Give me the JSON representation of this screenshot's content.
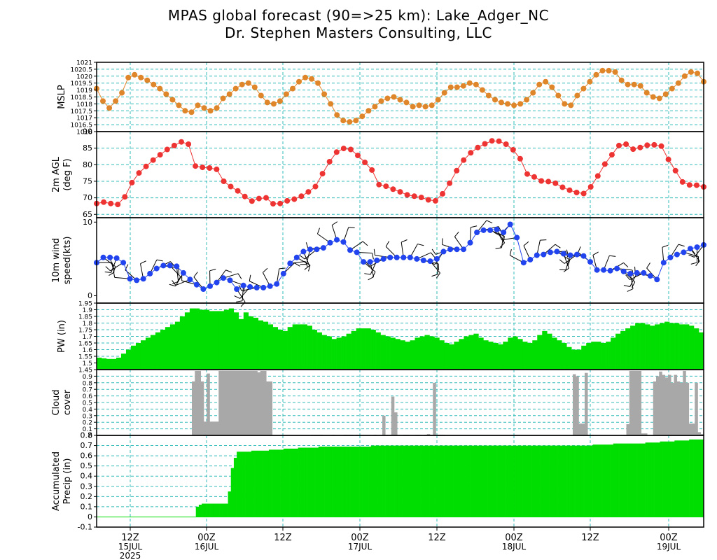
{
  "title": "MPAS global forecast (90=>25 km): Lake_Adger_NC",
  "subtitle": "Dr. Stephen Masters Consulting, LLC",
  "colors": {
    "mslp": "#e0862a",
    "t2m": "#ee3333",
    "wind": "#2244ee",
    "pw_fill": "#00dd00",
    "cloud_fill": "#a8a8a8",
    "precip_fill": "#00dd00",
    "grid": "#33bbbb"
  },
  "chart_data": [
    {
      "id": "mslp",
      "type": "line",
      "ylabel": [
        "MSLP"
      ],
      "ylim": [
        1016,
        1021
      ],
      "yticks": [
        "1016",
        "1016.5",
        "1017",
        "1017.5",
        "1018",
        "1018.5",
        "1019",
        "1019.5",
        "1020",
        "1020.5",
        "1021"
      ],
      "grid": true,
      "values": [
        1019.1,
        1018.2,
        1017.7,
        1018.2,
        1018.8,
        1019.9,
        1020.1,
        1019.9,
        1019.7,
        1019.4,
        1019.1,
        1018.7,
        1018.3,
        1017.9,
        1017.5,
        1017.4,
        1017.9,
        1017.7,
        1017.5,
        1017.7,
        1018.4,
        1018.7,
        1019.1,
        1019.4,
        1019.5,
        1019.2,
        1018.6,
        1018.1,
        1018.0,
        1018.2,
        1018.7,
        1019.1,
        1019.6,
        1019.9,
        1019.8,
        1019.5,
        1018.7,
        1018.0,
        1017.2,
        1016.8,
        1016.7,
        1016.8,
        1017.1,
        1017.5,
        1017.8,
        1018.2,
        1018.4,
        1018.5,
        1018.3,
        1018.1,
        1017.8,
        1017.9,
        1017.8,
        1017.9,
        1018.3,
        1018.8,
        1019.2,
        1019.2,
        1019.3,
        1019.5,
        1019.4,
        1019.0,
        1018.6,
        1018.3,
        1018.1,
        1018.0,
        1017.9,
        1018.0,
        1018.3,
        1018.8,
        1019.4,
        1019.6,
        1019.2,
        1018.6,
        1018.0,
        1017.9,
        1018.6,
        1019.1,
        1019.6,
        1020.1,
        1020.4,
        1020.4,
        1020.3,
        1019.7,
        1019.4,
        1019.4,
        1019.3,
        1018.8,
        1018.5,
        1018.4,
        1018.7,
        1019.1,
        1019.5,
        1020.0,
        1020.3,
        1020.2,
        1019.6
      ]
    },
    {
      "id": "t2m",
      "type": "line",
      "ylabel": [
        "2m AGL",
        "(deg F)"
      ],
      "ylim": [
        64,
        90
      ],
      "yticks": [
        "65",
        "70",
        "75",
        "80",
        "85",
        "90"
      ],
      "grid": true,
      "values": [
        68.3,
        68.7,
        68.3,
        68.0,
        70.3,
        74.6,
        77.5,
        79.5,
        81.4,
        83.0,
        84.6,
        85.8,
        86.9,
        86.2,
        79.6,
        79.2,
        79.0,
        78.6,
        75.0,
        73.4,
        72.1,
        70.4,
        69.0,
        69.8,
        70.0,
        68.2,
        68.3,
        69.1,
        69.6,
        70.5,
        71.8,
        73.4,
        77.3,
        80.9,
        83.8,
        84.9,
        84.6,
        82.8,
        80.7,
        78.4,
        74.0,
        73.5,
        72.6,
        71.8,
        70.9,
        70.5,
        70.1,
        69.4,
        69.1,
        71.2,
        74.4,
        78.2,
        81.4,
        83.6,
        85.2,
        86.3,
        87.2,
        87.1,
        86.2,
        84.5,
        81.8,
        77.2,
        76.3,
        75.1,
        74.9,
        74.4,
        73.2,
        72.3,
        71.6,
        71.3,
        73.3,
        76.6,
        80.2,
        83.0,
        85.8,
        86.2,
        84.7,
        85.2,
        85.9,
        86.0,
        85.6,
        81.6,
        78.2,
        74.8,
        73.9,
        73.8,
        73.3
      ]
    },
    {
      "id": "wind",
      "type": "line",
      "ylabel": [
        "10m wind",
        "speed(kts)"
      ],
      "ylim": [
        -1,
        10.6
      ],
      "yticks": [
        "0",
        "10"
      ],
      "grid": false,
      "barbs": "wind barbs drawn along the speed curve",
      "values": [
        4.5,
        5.2,
        5.2,
        5.1,
        4.5,
        2.3,
        2.1,
        2.3,
        3.0,
        3.7,
        4.1,
        4.1,
        4.0,
        3.1,
        2.2,
        1.5,
        0.9,
        1.3,
        1.8,
        2.4,
        2.1,
        0.9,
        1.4,
        1.2,
        1.1,
        1.1,
        1.3,
        1.6,
        3.0,
        4.4,
        5.2,
        6.0,
        6.3,
        6.3,
        6.5,
        7.2,
        7.6,
        7.3,
        6.2,
        5.9,
        4.6,
        4.6,
        4.8,
        5.0,
        5.2,
        5.2,
        5.2,
        5.2,
        5.0,
        4.8,
        4.7,
        5.0,
        6.0,
        6.3,
        6.3,
        6.3,
        7.2,
        8.6,
        8.9,
        8.9,
        9.0,
        8.6,
        9.7,
        7.9,
        4.5,
        4.9,
        5.5,
        5.6,
        5.9,
        6.0,
        5.7,
        5.5,
        5.6,
        5.4,
        4.6,
        3.5,
        3.5,
        3.4,
        3.7,
        3.3,
        3.0,
        3.1,
        3.1,
        2.7,
        2.2,
        4.5,
        5.2,
        5.6,
        5.9,
        6.4,
        6.6,
        6.9
      ]
    },
    {
      "id": "pw",
      "type": "area",
      "ylabel": [
        "PW (in)"
      ],
      "ylim": [
        1.45,
        1.95
      ],
      "yticks": [
        "1.45",
        "1.5",
        "1.55",
        "1.6",
        "1.65",
        "1.7",
        "1.75",
        "1.8",
        "1.85",
        "1.9",
        "1.95"
      ],
      "grid": true,
      "values": [
        1.54,
        1.535,
        1.53,
        1.53,
        1.54,
        1.57,
        1.6,
        1.63,
        1.65,
        1.67,
        1.69,
        1.71,
        1.73,
        1.75,
        1.77,
        1.79,
        1.81,
        1.85,
        1.88,
        1.91,
        1.91,
        1.9,
        1.9,
        1.89,
        1.89,
        1.89,
        1.9,
        1.91,
        1.88,
        1.83,
        1.88,
        1.85,
        1.84,
        1.82,
        1.81,
        1.79,
        1.77,
        1.75,
        1.74,
        1.77,
        1.79,
        1.79,
        1.79,
        1.78,
        1.75,
        1.73,
        1.71,
        1.7,
        1.68,
        1.69,
        1.7,
        1.72,
        1.74,
        1.76,
        1.76,
        1.76,
        1.75,
        1.73,
        1.71,
        1.7,
        1.69,
        1.68,
        1.67,
        1.66,
        1.67,
        1.69,
        1.7,
        1.71,
        1.7,
        1.69,
        1.67,
        1.65,
        1.64,
        1.66,
        1.68,
        1.7,
        1.71,
        1.72,
        1.69,
        1.67,
        1.66,
        1.65,
        1.64,
        1.66,
        1.69,
        1.7,
        1.68,
        1.66,
        1.65,
        1.67,
        1.71,
        1.74,
        1.72,
        1.69,
        1.67,
        1.65,
        1.62,
        1.6,
        1.6,
        1.63,
        1.65,
        1.66,
        1.66,
        1.65,
        1.66,
        1.69,
        1.72,
        1.74,
        1.76,
        1.78,
        1.8,
        1.8,
        1.79,
        1.78,
        1.79,
        1.8,
        1.81,
        1.8,
        1.8,
        1.79,
        1.79,
        1.78,
        1.76,
        1.73
      ]
    },
    {
      "id": "cloud",
      "type": "bar",
      "ylabel": [
        "Cloud",
        "cover"
      ],
      "ylim": [
        0,
        1
      ],
      "yticks": [
        "0",
        "0.1",
        "0.2",
        "0.3",
        "0.4",
        "0.5",
        "0.6",
        "0.7",
        "0.8",
        "0.9"
      ],
      "grid": true,
      "values": [
        0,
        0,
        0,
        0,
        0,
        0,
        0,
        0,
        0,
        0,
        0,
        0,
        0,
        0,
        0,
        0,
        0,
        0,
        0,
        0,
        0,
        0,
        0,
        0,
        0,
        0,
        0,
        0,
        0,
        0,
        0,
        0,
        0.82,
        0.98,
        0.98,
        0.82,
        0.21,
        0.94,
        0.21,
        0.21,
        0.21,
        0.98,
        0.98,
        0.98,
        0.98,
        0.98,
        0.98,
        0.98,
        0.98,
        0.98,
        0.98,
        0.98,
        0.98,
        0.98,
        0.96,
        0.98,
        0.98,
        0.82,
        0.82,
        0,
        0,
        0,
        0,
        0,
        0,
        0,
        0,
        0,
        0,
        0,
        0,
        0,
        0.01,
        0.01,
        0.01,
        0.01,
        0,
        0,
        0,
        0.01,
        0,
        0,
        0,
        0.01,
        0.01,
        0.01,
        0,
        0.01,
        0,
        0,
        0,
        0,
        0,
        0.01,
        0,
        0,
        0.3,
        0.01,
        0.01,
        0.59,
        0.35,
        0,
        0,
        0.01,
        0.01,
        0,
        0,
        0.01,
        0.01,
        0,
        0.01,
        0.02,
        0.01,
        0.8,
        0.01,
        0.01,
        0.01,
        0,
        0,
        0,
        0,
        0,
        0,
        0,
        0,
        0,
        0,
        0,
        0,
        0,
        0,
        0,
        0,
        0,
        0,
        0,
        0,
        0,
        0,
        0,
        0,
        0,
        0,
        0,
        0,
        0,
        0,
        0,
        0,
        0,
        0,
        0,
        0,
        0,
        0,
        0,
        0,
        0,
        0,
        0,
        0.93,
        0.9,
        0.18,
        0.18,
        0.95,
        0.01,
        0.01,
        0,
        0,
        0,
        0,
        0,
        0,
        0,
        0,
        0,
        0.01,
        0.01,
        0.17,
        0.98,
        0.98,
        0.98,
        0.98,
        0.03,
        0.03,
        0,
        0,
        0.82,
        0.9,
        0.97,
        0.92,
        0.88,
        0.92,
        0.8,
        0.92,
        0.82,
        0.8,
        0.98,
        0.8,
        0.18,
        0.18,
        0.8,
        0.05,
        0.02
      ]
    },
    {
      "id": "precip",
      "type": "area",
      "ylabel": [
        "Accumulated",
        "Precip (in)"
      ],
      "ylim": [
        -0.1,
        0.8
      ],
      "yticks": [
        "-0.1",
        "0",
        "0.1",
        "0.2",
        "0.3",
        "0.4",
        "0.5",
        "0.6",
        "0.7",
        "0.8"
      ],
      "grid": true,
      "values": [
        0,
        0,
        0,
        0,
        0,
        0,
        0,
        0,
        0,
        0,
        0,
        0,
        0,
        0,
        0,
        0,
        0,
        0,
        0,
        0,
        0,
        0,
        0,
        0,
        0,
        0,
        0,
        0,
        0,
        0,
        0,
        0,
        0,
        0,
        0.1,
        0.12,
        0.13,
        0.13,
        0.13,
        0.13,
        0.13,
        0.13,
        0.13,
        0.13,
        0.13,
        0.25,
        0.48,
        0.58,
        0.64,
        0.64,
        0.64,
        0.64,
        0.64,
        0.65,
        0.65,
        0.65,
        0.65,
        0.65,
        0.65,
        0.66,
        0.66,
        0.66,
        0.66,
        0.66,
        0.67,
        0.67,
        0.67,
        0.67,
        0.67,
        0.68,
        0.68,
        0.68,
        0.68,
        0.68,
        0.68,
        0.68,
        0.69,
        0.69,
        0.69,
        0.69,
        0.69,
        0.69,
        0.69,
        0.69,
        0.69,
        0.69,
        0.69,
        0.69,
        0.69,
        0.69,
        0.69,
        0.69,
        0.69,
        0.69,
        0.7,
        0.7,
        0.7,
        0.7,
        0.7,
        0.7,
        0.7,
        0.7,
        0.7,
        0.7,
        0.7,
        0.7,
        0.7,
        0.7,
        0.7,
        0.7,
        0.7,
        0.7,
        0.7,
        0.7,
        0.7,
        0.7,
        0.7,
        0.7,
        0.7,
        0.7,
        0.7,
        0.7,
        0.7,
        0.7,
        0.7,
        0.7,
        0.7,
        0.7,
        0.7,
        0.7,
        0.7,
        0.7,
        0.7,
        0.7,
        0.7,
        0.7,
        0.7,
        0.7,
        0.7,
        0.7,
        0.7,
        0.7,
        0.7,
        0.7,
        0.7,
        0.7,
        0.7,
        0.7,
        0.7,
        0.7,
        0.7,
        0.7,
        0.7,
        0.7,
        0.7,
        0.7,
        0.7,
        0.7,
        0.7,
        0.7,
        0.7,
        0.7,
        0.7,
        0.7,
        0.7,
        0.7,
        0.7,
        0.7,
        0.7,
        0.7,
        0.71,
        0.71,
        0.71,
        0.71,
        0.71,
        0.71,
        0.71,
        0.72,
        0.72,
        0.72,
        0.72,
        0.72,
        0.72,
        0.72,
        0.72,
        0.72,
        0.72,
        0.72,
        0.73,
        0.73,
        0.73,
        0.73,
        0.73,
        0.74,
        0.74,
        0.74,
        0.74,
        0.74,
        0.75,
        0.75,
        0.75,
        0.75,
        0.75,
        0.76,
        0.76,
        0.76,
        0.76,
        0.76
      ]
    }
  ],
  "time_axis": {
    "ticks": [
      {
        "label": "12Z",
        "day": "15JUL",
        "extra": "2025"
      },
      {
        "label": "00Z",
        "day": "16JUL",
        "extra": ""
      },
      {
        "label": "12Z",
        "day": "",
        "extra": ""
      },
      {
        "label": "00Z",
        "day": "17JUL",
        "extra": ""
      },
      {
        "label": "12Z",
        "day": "",
        "extra": ""
      },
      {
        "label": "00Z",
        "day": "18JUL",
        "extra": ""
      },
      {
        "label": "12Z",
        "day": "",
        "extra": ""
      },
      {
        "label": "00Z",
        "day": "19JUL",
        "extra": ""
      }
    ]
  }
}
